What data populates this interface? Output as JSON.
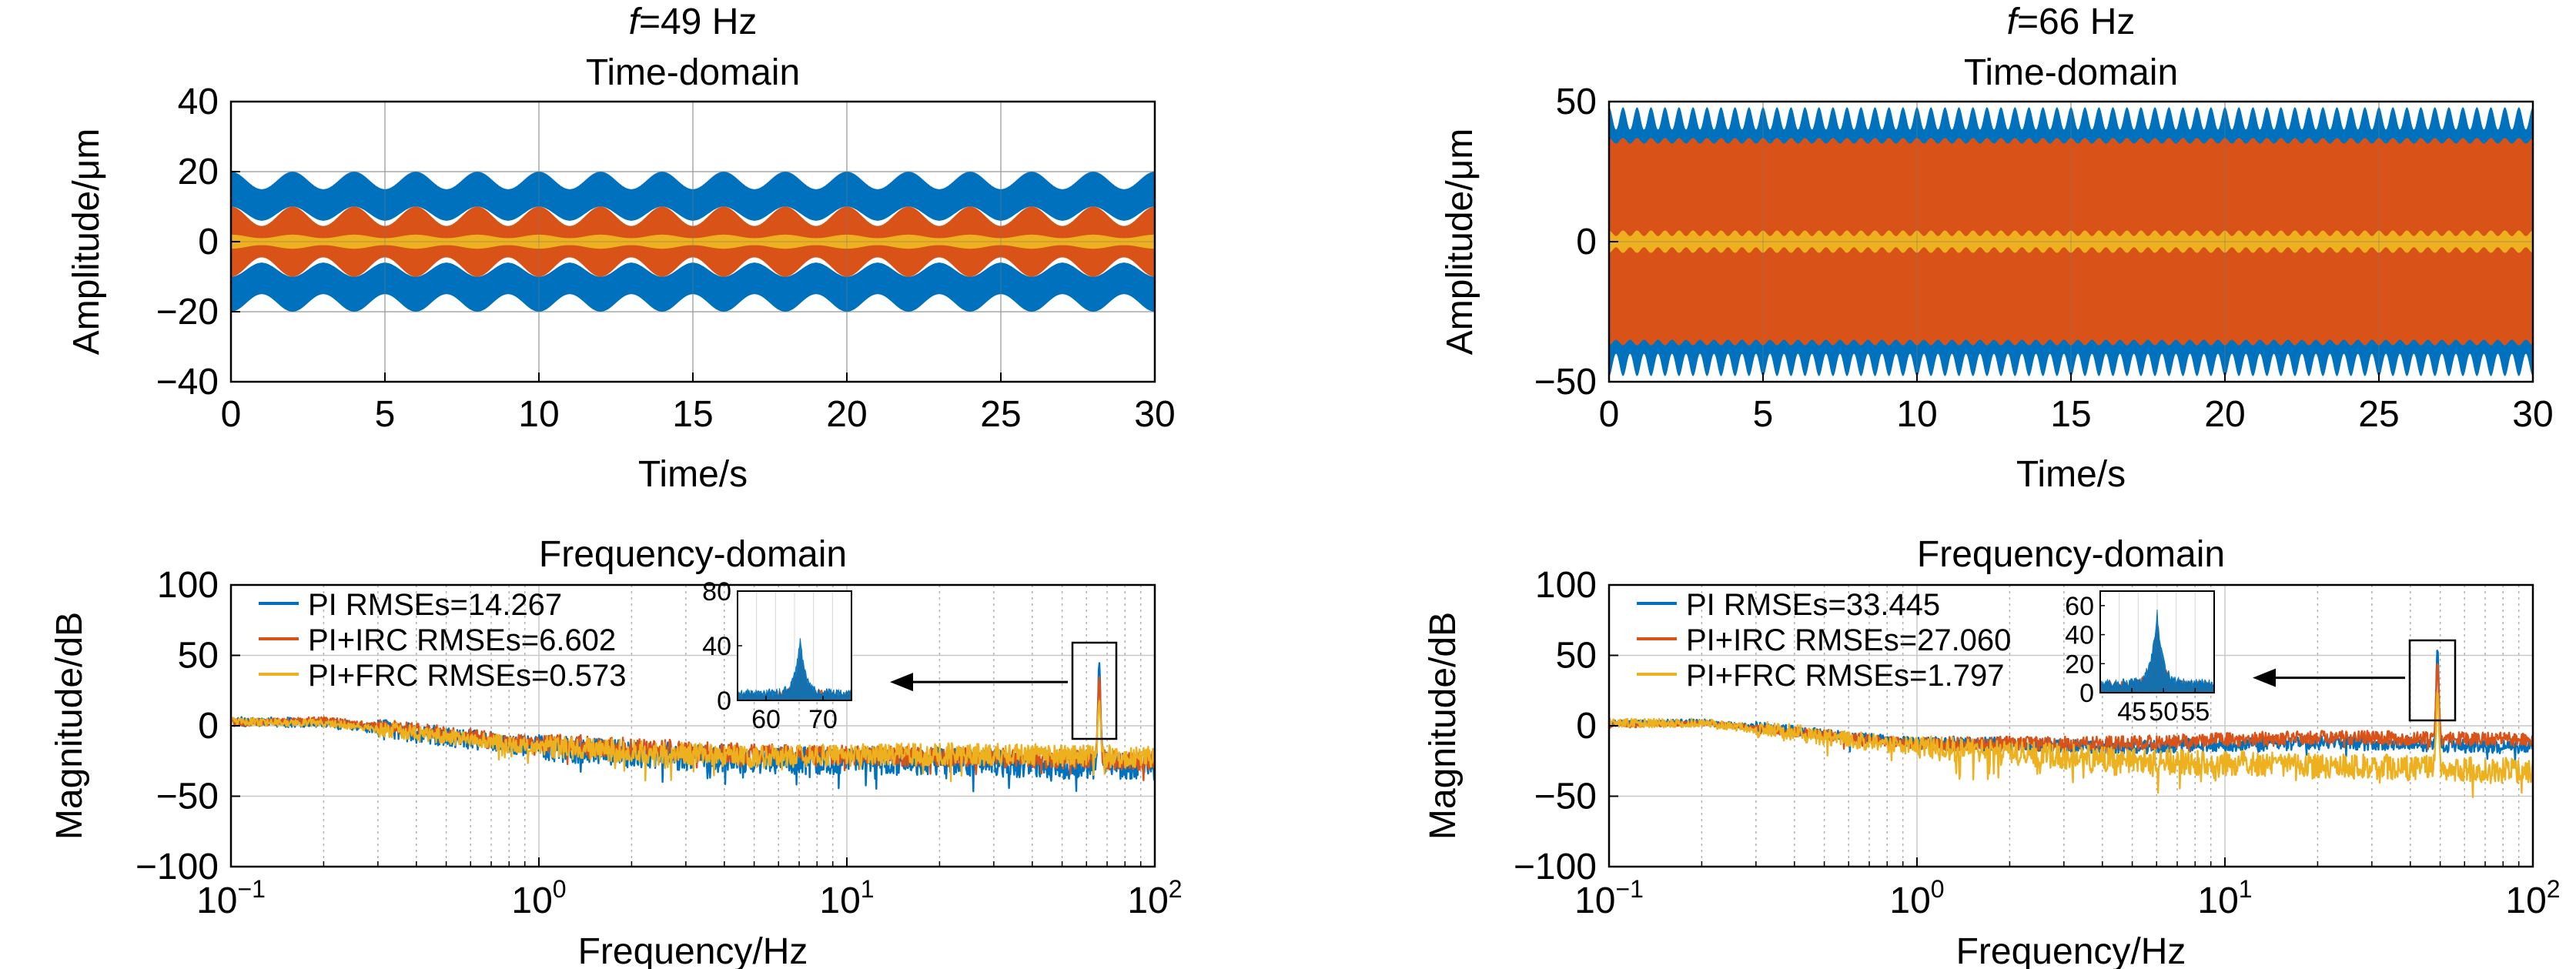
{
  "colors": {
    "pi": "#0072BD",
    "irc": "#D95319",
    "frc": "#EDB120",
    "grid": "#c8c8c8",
    "axis": "#000000"
  },
  "columns": [
    {
      "title_f": "f",
      "title_rest": "=49 Hz",
      "time_title": "Time-domain",
      "freq_title": "Frequency-domain"
    },
    {
      "title_f": "f",
      "title_rest": "=66 Hz",
      "time_title": "Time-domain",
      "freq_title": "Frequency-domain"
    }
  ],
  "chart_data": [
    {
      "id": "time-49",
      "type": "area",
      "title": "Time-domain",
      "xlabel": "Time/s",
      "ylabel": "Amplitude/μm",
      "xlim": [
        0,
        30
      ],
      "ylim": [
        -40,
        40
      ],
      "xticks": [
        "0",
        "5",
        "10",
        "15",
        "20",
        "25",
        "30"
      ],
      "yticks": [
        "−40",
        "−20",
        "0",
        "20",
        "40"
      ],
      "grid": true,
      "envelope_cycles": 15,
      "series": [
        {
          "key": "pi",
          "outer_max": 20,
          "outer_min": 15,
          "inner_max": 10,
          "inner_min": 6
        },
        {
          "key": "irc",
          "outer_max": 10,
          "outer_min": 4.5,
          "inner_max": 0,
          "inner_min": 0
        },
        {
          "key": "frc",
          "outer_max": 2,
          "outer_min": 1,
          "inner_max": 0,
          "inner_min": 0
        }
      ]
    },
    {
      "id": "time-66",
      "type": "area",
      "title": "Time-domain",
      "xlabel": "Time/s",
      "ylabel": "Amplitude/μm",
      "xlim": [
        0,
        30
      ],
      "ylim": [
        -50,
        50
      ],
      "xticks": [
        "0",
        "5",
        "10",
        "15",
        "20",
        "25",
        "30"
      ],
      "yticks": [
        "−50",
        "0",
        "50"
      ],
      "grid": true,
      "envelope_cycles": 66,
      "series": [
        {
          "key": "pi",
          "outer_max": 48,
          "outer_min": 40,
          "inner_max": 0,
          "inner_min": 0
        },
        {
          "key": "irc",
          "outer_max": 37,
          "outer_min": 35,
          "inner_max": 0,
          "inner_min": 0
        },
        {
          "key": "frc",
          "outer_max": 4,
          "outer_min": 2,
          "inner_max": 0,
          "inner_min": 0
        }
      ]
    },
    {
      "id": "freq-49",
      "type": "line",
      "title": "Frequency-domain",
      "xlabel": "Frequency/Hz",
      "ylabel": "Magnitude/dB",
      "xscale": "log",
      "xlim": [
        0.1,
        100
      ],
      "ylim": [
        -100,
        100
      ],
      "xticks": [
        {
          "base": "10",
          "exp": "−1"
        },
        {
          "base": "10",
          "exp": "0"
        },
        {
          "base": "10",
          "exp": "1"
        },
        {
          "base": "10",
          "exp": "2"
        }
      ],
      "yticks": [
        "−100",
        "−50",
        "0",
        "50",
        "100"
      ],
      "grid": true,
      "legend_position": "top-left",
      "peak_hz": 66,
      "peak_db": 45,
      "series": [
        {
          "key": "pi",
          "name": "PI RMSEs=14.267",
          "level": [
            [
              0.1,
              3
            ],
            [
              0.2,
              2
            ],
            [
              1,
              -15
            ],
            [
              5,
              -25
            ],
            [
              20,
              -25
            ],
            [
              100,
              -30
            ]
          ],
          "noise": 10,
          "peak_db": 45
        },
        {
          "key": "irc",
          "name": "PI+IRC RMSEs=6.602",
          "level": [
            [
              0.1,
              2
            ],
            [
              0.2,
              4
            ],
            [
              1,
              -12
            ],
            [
              5,
              -20
            ],
            [
              20,
              -22
            ],
            [
              100,
              -25
            ]
          ],
          "noise": 7,
          "peak_db": 35
        },
        {
          "key": "frc",
          "name": "PI+FRC RMSEs=0.573",
          "level": [
            [
              0.1,
              3
            ],
            [
              0.2,
              2
            ],
            [
              1,
              -15
            ],
            [
              5,
              -22
            ],
            [
              20,
              -20
            ],
            [
              100,
              -22
            ]
          ],
          "noise": 8,
          "peak_db": 18
        }
      ],
      "inset": {
        "xlim": [
          55,
          75
        ],
        "ylim": [
          0,
          80
        ],
        "xticks": [
          "60",
          "70"
        ],
        "yticks": [
          "0",
          "40",
          "80"
        ],
        "peak_x": 66
      }
    },
    {
      "id": "freq-66",
      "type": "line",
      "title": "Frequency-domain",
      "xlabel": "Frequency/Hz",
      "ylabel": "Magnitude/dB",
      "xscale": "log",
      "xlim": [
        0.1,
        100
      ],
      "ylim": [
        -100,
        100
      ],
      "xticks": [
        {
          "base": "10",
          "exp": "−1"
        },
        {
          "base": "10",
          "exp": "0"
        },
        {
          "base": "10",
          "exp": "1"
        },
        {
          "base": "10",
          "exp": "2"
        }
      ],
      "yticks": [
        "−100",
        "−50",
        "0",
        "50",
        "100"
      ],
      "grid": true,
      "legend_position": "top-left",
      "peak_hz": 49,
      "peak_db": 55,
      "series": [
        {
          "key": "pi",
          "name": "PI RMSEs=33.445",
          "level": [
            [
              0.1,
              2
            ],
            [
              0.2,
              3
            ],
            [
              1,
              -12
            ],
            [
              5,
              -15
            ],
            [
              20,
              -12
            ],
            [
              100,
              -15
            ]
          ],
          "noise": 5,
          "peak_db": 55
        },
        {
          "key": "irc",
          "name": "PI+IRC RMSEs=27.060",
          "level": [
            [
              0.1,
              0
            ],
            [
              0.2,
              2
            ],
            [
              1,
              -13
            ],
            [
              5,
              -12
            ],
            [
              20,
              -8
            ],
            [
              100,
              -10
            ]
          ],
          "noise": 5,
          "peak_db": 45
        },
        {
          "key": "frc",
          "name": "PI+FRC RMSEs=1.797",
          "level": [
            [
              0.1,
              2
            ],
            [
              0.2,
              2
            ],
            [
              1,
              -15
            ],
            [
              5,
              -25
            ],
            [
              20,
              -28
            ],
            [
              100,
              -32
            ]
          ],
          "noise": 9,
          "peak_db": 25
        }
      ],
      "inset": {
        "xlim": [
          40,
          58
        ],
        "ylim": [
          0,
          70
        ],
        "xticks": [
          "45",
          "50",
          "55"
        ],
        "yticks": [
          "0",
          "20",
          "40",
          "60"
        ],
        "peak_x": 49
      }
    }
  ]
}
